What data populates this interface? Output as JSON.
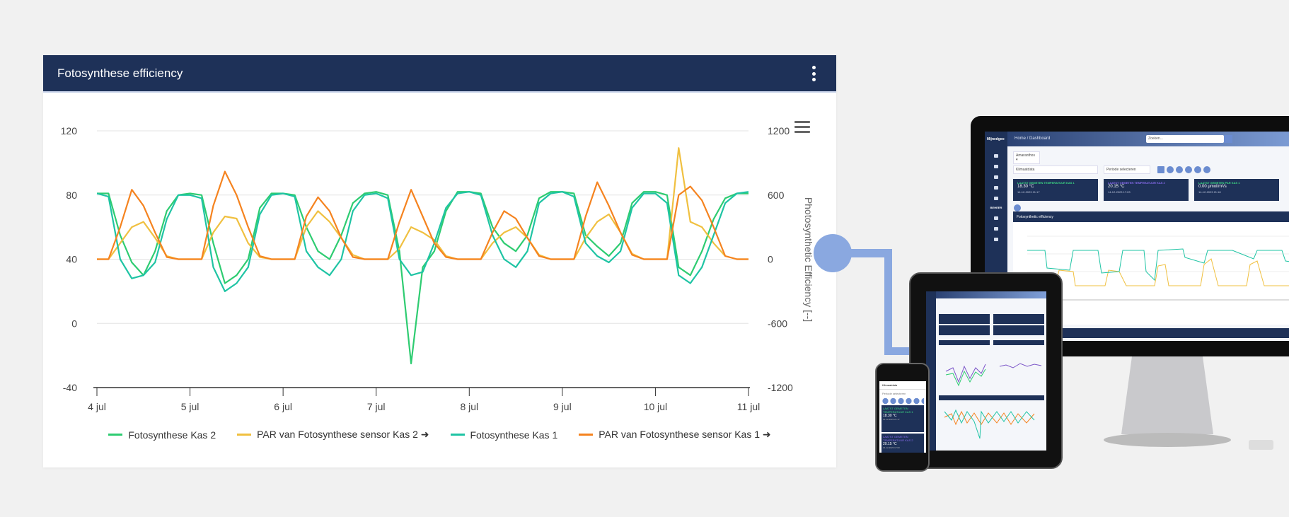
{
  "card": {
    "title": "Fotosynthese efficiency"
  },
  "chart_data": {
    "type": "line",
    "title": "Fotosynthese efficiency",
    "xlabel": "",
    "ylabel_left": "",
    "ylabel_right": "Photosynthetic Efficiency [--]",
    "x_start": "4 jul",
    "x_step_days": 0.125,
    "x_ticks": [
      "4 jul",
      "5 jul",
      "6 jul",
      "7 jul",
      "8 jul",
      "9 jul",
      "10 jul",
      "11 jul"
    ],
    "ylim_left": [
      -40,
      120
    ],
    "yticks_left": [
      "-40",
      "0",
      "40",
      "80",
      "120"
    ],
    "ylim_right": [
      -1200,
      1200
    ],
    "yticks_right": [
      "-1200",
      "-600",
      "0",
      "600",
      "1200"
    ],
    "grid": true,
    "legend_position": "bottom",
    "series": [
      {
        "name": "Fotosynthese Kas 2",
        "color": "#2ecc71",
        "axis": "left",
        "values": [
          81,
          81,
          55,
          38,
          30,
          45,
          70,
          80,
          81,
          80,
          50,
          25,
          30,
          40,
          72,
          81,
          81,
          80,
          60,
          45,
          40,
          55,
          75,
          81,
          82,
          80,
          45,
          -25,
          35,
          45,
          70,
          82,
          82,
          81,
          60,
          50,
          45,
          55,
          78,
          82,
          82,
          81,
          55,
          48,
          42,
          50,
          75,
          82,
          82,
          80,
          35,
          30,
          45,
          65,
          78,
          81,
          81
        ]
      },
      {
        "name": "PAR van Fotosynthese sensor Kas 2 ➜",
        "color": "#f0c040",
        "axis": "right",
        "values": [
          0,
          0,
          150,
          300,
          350,
          200,
          30,
          0,
          0,
          0,
          250,
          400,
          380,
          150,
          20,
          0,
          0,
          0,
          300,
          450,
          350,
          200,
          40,
          0,
          0,
          0,
          100,
          300,
          250,
          180,
          30,
          0,
          0,
          0,
          150,
          250,
          300,
          200,
          40,
          0,
          0,
          0,
          200,
          350,
          420,
          250,
          50,
          0,
          0,
          0,
          1040,
          350,
          300,
          150,
          30,
          0,
          0
        ]
      },
      {
        "name": "Fotosynthese Kas 1",
        "color": "#1fc4a4",
        "axis": "left",
        "values": [
          81,
          79,
          40,
          28,
          30,
          38,
          65,
          80,
          80,
          78,
          35,
          20,
          25,
          35,
          68,
          80,
          81,
          79,
          45,
          35,
          30,
          40,
          70,
          80,
          81,
          78,
          40,
          30,
          32,
          50,
          72,
          81,
          82,
          80,
          55,
          40,
          35,
          45,
          75,
          81,
          82,
          79,
          50,
          42,
          38,
          45,
          72,
          81,
          81,
          75,
          30,
          25,
          35,
          55,
          75,
          81,
          82
        ]
      },
      {
        "name": "PAR van Fotosynthese sensor Kas 1 ➜",
        "color": "#f5831f",
        "axis": "right",
        "values": [
          0,
          0,
          300,
          650,
          500,
          250,
          20,
          0,
          0,
          0,
          500,
          820,
          600,
          300,
          30,
          0,
          0,
          0,
          400,
          580,
          450,
          200,
          20,
          0,
          0,
          0,
          350,
          650,
          400,
          150,
          20,
          0,
          0,
          0,
          250,
          450,
          380,
          200,
          30,
          0,
          0,
          0,
          400,
          720,
          500,
          250,
          40,
          0,
          0,
          0,
          600,
          680,
          550,
          300,
          30,
          0,
          0
        ]
      }
    ]
  },
  "mockup": {
    "logo": "Mijnedgeo",
    "breadcrumb": "Home / Dashboard",
    "search_placeholder": "Zoeken...",
    "company_select": "Amaranthos ▾",
    "data_select": "Klimaatdata",
    "period_placeholder": "Periode selecteren",
    "sidebar_section": "BEHEER",
    "cards": [
      {
        "label": "LAATST GEMETEN TEMPERATUUR KAS 1",
        "value": "18.30 °C",
        "time": "14-12-2023 21:17",
        "label_color": "#3ddc84"
      },
      {
        "label": "LAATST GEMETEN TEMPERATUUR KAS 2",
        "value": "20.15 °C",
        "time": "14-12-2023 17:03",
        "label_color": "#8a6cf0"
      },
      {
        "label": "LAATST GEMETEN PAR KAS 1",
        "value": "0.00 μmol/m²/s",
        "time": "14-12-2023 21:18",
        "label_color": "#3ddc84"
      }
    ],
    "panel_title": "Fotosynthetic efficiency",
    "phone_card_label": "LAATST GEMETEN TEMPERATUUR KAS 1",
    "phone_card_value": "18.30 °C",
    "phone_card_time": "14-12-2023 21:17",
    "phone_card2_label": "LAATST GEMETEN TEMPERATUUR KAS 2",
    "phone_card2_value": "20.15 °C",
    "phone_card2_time": "14-12-2023 17:03"
  }
}
